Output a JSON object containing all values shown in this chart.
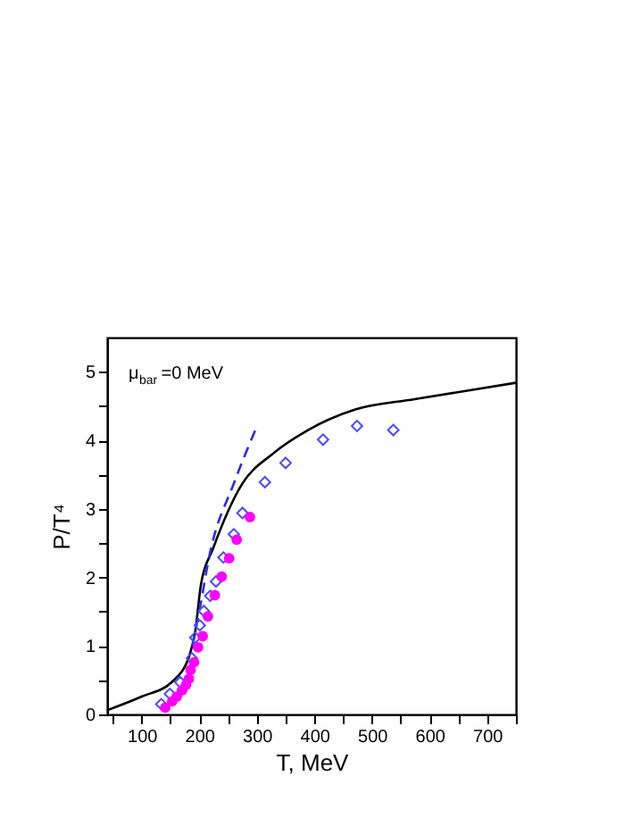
{
  "chart_data": {
    "type": "scatter",
    "xlabel": "T, MeV",
    "ylabel": "P/T⁴",
    "annotations": [
      "μ$_{bar}$=0 MeV"
    ],
    "xlim": [
      40,
      750
    ],
    "ylim": [
      0,
      5.5
    ],
    "xticks": [
      {
        "value": 50,
        "label": null
      },
      100,
      {
        "value": 150,
        "label": null
      },
      200,
      {
        "value": 250,
        "label": null
      },
      300,
      {
        "value": 350,
        "label": null
      },
      400,
      {
        "value": 450,
        "label": null
      },
      500,
      {
        "value": 550,
        "label": null
      },
      600,
      {
        "value": 650,
        "label": null
      },
      700,
      {
        "value": 750,
        "label": null
      }
    ],
    "yticks": [
      0,
      {
        "value": 0.5,
        "label": null
      },
      1,
      {
        "value": 1.5,
        "label": null
      },
      2,
      {
        "value": 2.5,
        "label": null
      },
      3,
      {
        "value": 3.5,
        "label": null
      },
      4,
      {
        "value": 4.5,
        "label": null
      },
      5
    ],
    "grid": false,
    "series": [
      {
        "type": "line",
        "color": "#000000",
        "line_style": "solid",
        "marker": "none",
        "x": [
          40,
          100,
          152,
          183,
          193,
          203,
          224,
          275,
          327,
          389,
          471,
          574,
          750
        ],
        "values": [
          0.06,
          0.26,
          0.47,
          0.86,
          1.21,
          1.9,
          2.42,
          3.37,
          3.8,
          4.15,
          4.45,
          4.6,
          4.84
        ]
      },
      {
        "type": "line",
        "color": "#2a2aee",
        "line_style": "dashed",
        "marker": "none",
        "x": [
          188,
          200,
          218,
          260,
          298
        ],
        "values": [
          1.0,
          1.5,
          2.33,
          3.37,
          4.16
        ]
      },
      {
        "color": "#4a4aff",
        "marker": "diamond",
        "x": [
          134,
          149,
          167,
          187,
          193,
          201,
          208,
          219,
          229,
          242,
          260,
          275,
          314,
          350,
          415,
          474,
          537
        ],
        "values": [
          0.15,
          0.3,
          0.47,
          0.82,
          1.12,
          1.3,
          1.51,
          1.73,
          1.94,
          2.29,
          2.63,
          2.94,
          3.39,
          3.67,
          4.01,
          4.21,
          4.15
        ]
      },
      {
        "color": "#ff00ff",
        "marker": "circle",
        "x": [
          141,
          153,
          161,
          170,
          177,
          182,
          185,
          191,
          198,
          206,
          215,
          227,
          239,
          252,
          265,
          288
        ],
        "values": [
          0.1,
          0.19,
          0.26,
          0.35,
          0.43,
          0.52,
          0.65,
          0.76,
          0.98,
          1.14,
          1.43,
          1.74,
          2.01,
          2.28,
          2.55,
          2.88
        ]
      }
    ]
  }
}
